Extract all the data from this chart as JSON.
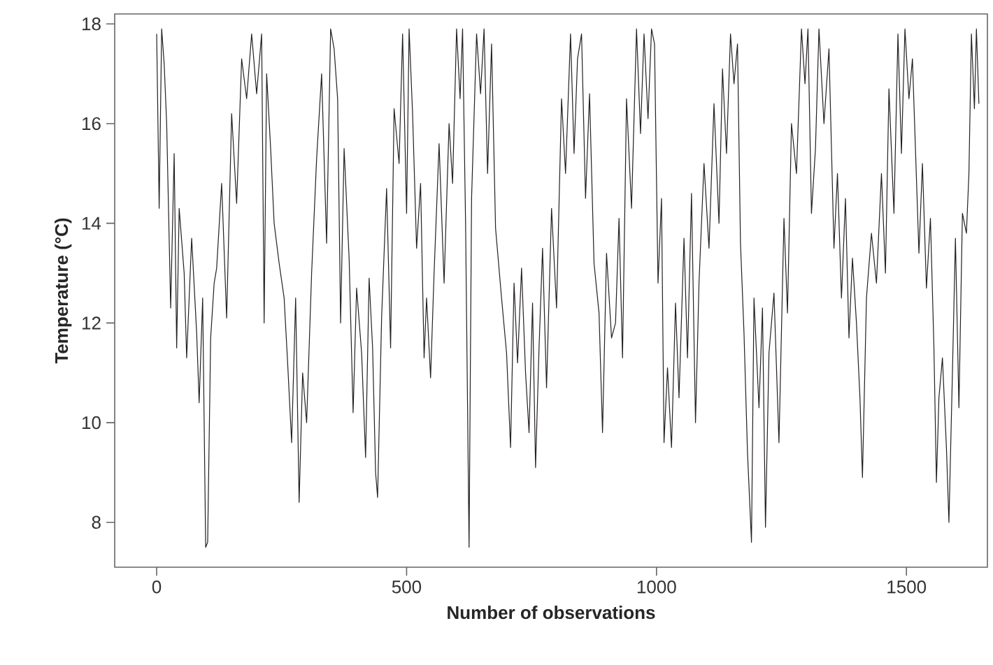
{
  "chart_data": {
    "type": "line",
    "xlabel": "Number of observations",
    "ylabel": "Temperature (°C)",
    "xlim": [
      -84,
      1662
    ],
    "ylim": [
      7.1,
      18.2
    ],
    "xticks": [
      0,
      500,
      1000,
      1500
    ],
    "yticks": [
      8,
      10,
      12,
      14,
      16,
      18
    ],
    "grid": false,
    "marker": "none",
    "line_style": "solid",
    "series": [
      {
        "color": "#231f20",
        "x": [
          0,
          5,
          10,
          15,
          20,
          28,
          35,
          40,
          45,
          55,
          60,
          70,
          80,
          85,
          92,
          98,
          102,
          108,
          115,
          120,
          130,
          140,
          150,
          160,
          170,
          180,
          190,
          200,
          210,
          215,
          220,
          228,
          235,
          245,
          255,
          262,
          270,
          278,
          285,
          292,
          300,
          310,
          320,
          330,
          340,
          348,
          355,
          362,
          368,
          375,
          385,
          393,
          400,
          410,
          418,
          425,
          432,
          438,
          442,
          450,
          460,
          468,
          475,
          485,
          492,
          500,
          505,
          512,
          520,
          528,
          535,
          540,
          548,
          555,
          565,
          575,
          585,
          592,
          600,
          607,
          612,
          618,
          625,
          630,
          640,
          648,
          655,
          662,
          670,
          678,
          690,
          700,
          708,
          715,
          722,
          730,
          738,
          745,
          752,
          758,
          765,
          772,
          780,
          790,
          800,
          810,
          818,
          828,
          835,
          842,
          850,
          858,
          866,
          875,
          885,
          892,
          900,
          910,
          918,
          925,
          932,
          940,
          950,
          960,
          968,
          975,
          983,
          990,
          996,
          1003,
          1010,
          1015,
          1022,
          1030,
          1038,
          1045,
          1055,
          1062,
          1070,
          1078,
          1085,
          1095,
          1105,
          1115,
          1125,
          1132,
          1140,
          1148,
          1155,
          1162,
          1168,
          1175,
          1182,
          1190,
          1195,
          1205,
          1212,
          1218,
          1225,
          1235,
          1245,
          1255,
          1262,
          1270,
          1280,
          1290,
          1297,
          1303,
          1310,
          1318,
          1325,
          1335,
          1345,
          1355,
          1362,
          1370,
          1378,
          1385,
          1392,
          1400,
          1407,
          1412,
          1420,
          1430,
          1440,
          1450,
          1458,
          1465,
          1475,
          1483,
          1490,
          1497,
          1505,
          1512,
          1518,
          1525,
          1532,
          1540,
          1548,
          1555,
          1560,
          1565,
          1572,
          1580,
          1585,
          1592,
          1598,
          1605,
          1612,
          1620,
          1625,
          1630,
          1636,
          1640,
          1645
        ],
        "values": [
          17.8,
          14.3,
          17.9,
          17.2,
          16.0,
          12.3,
          15.4,
          11.5,
          14.3,
          13.0,
          11.3,
          13.7,
          11.8,
          10.4,
          12.5,
          7.5,
          7.6,
          11.7,
          12.8,
          13.1,
          14.8,
          12.1,
          16.2,
          14.4,
          17.3,
          16.5,
          17.8,
          16.6,
          17.8,
          12.0,
          17.0,
          15.5,
          14.0,
          13.2,
          12.5,
          11.2,
          9.6,
          12.5,
          8.4,
          11.0,
          10.0,
          13.0,
          15.3,
          17.0,
          13.6,
          17.9,
          17.5,
          16.5,
          12.0,
          15.5,
          13.3,
          10.2,
          12.7,
          11.4,
          9.3,
          12.9,
          11.5,
          9.0,
          8.5,
          12.1,
          14.7,
          11.5,
          16.3,
          15.2,
          17.8,
          14.2,
          17.9,
          16.2,
          13.5,
          14.8,
          11.3,
          12.5,
          10.9,
          13.0,
          15.6,
          12.8,
          16.0,
          14.8,
          17.9,
          16.5,
          17.9,
          14.0,
          7.5,
          14.5,
          17.8,
          16.6,
          17.9,
          15.0,
          17.6,
          13.9,
          12.5,
          11.4,
          9.5,
          12.8,
          11.2,
          13.1,
          11.0,
          9.8,
          12.4,
          9.1,
          11.5,
          13.5,
          10.7,
          14.3,
          12.3,
          16.5,
          15.0,
          17.8,
          15.4,
          17.3,
          17.8,
          14.5,
          16.6,
          13.2,
          12.2,
          9.8,
          13.4,
          11.7,
          12.0,
          14.1,
          11.3,
          16.5,
          14.3,
          17.9,
          15.8,
          17.8,
          16.1,
          17.9,
          17.6,
          12.8,
          14.5,
          9.6,
          11.1,
          9.5,
          12.4,
          10.5,
          13.7,
          11.3,
          14.6,
          10.0,
          12.8,
          15.2,
          13.5,
          16.4,
          14.0,
          17.1,
          15.4,
          17.8,
          16.8,
          17.6,
          13.6,
          11.8,
          9.4,
          7.6,
          12.5,
          10.3,
          12.3,
          7.9,
          11.4,
          12.6,
          9.6,
          14.1,
          12.2,
          16.0,
          15.0,
          17.9,
          16.8,
          17.9,
          14.2,
          15.5,
          17.9,
          16.0,
          17.5,
          13.5,
          15.0,
          12.5,
          14.5,
          11.7,
          13.3,
          12.0,
          10.5,
          8.9,
          12.5,
          13.8,
          12.8,
          15.0,
          13.0,
          16.7,
          14.2,
          17.8,
          15.4,
          17.9,
          16.5,
          17.3,
          15.5,
          13.4,
          15.2,
          12.7,
          14.1,
          11.5,
          8.8,
          10.5,
          11.3,
          9.5,
          8.0,
          11.0,
          13.7,
          10.3,
          14.2,
          13.8,
          15.0,
          17.8,
          16.3,
          17.9,
          16.4
        ]
      }
    ]
  }
}
